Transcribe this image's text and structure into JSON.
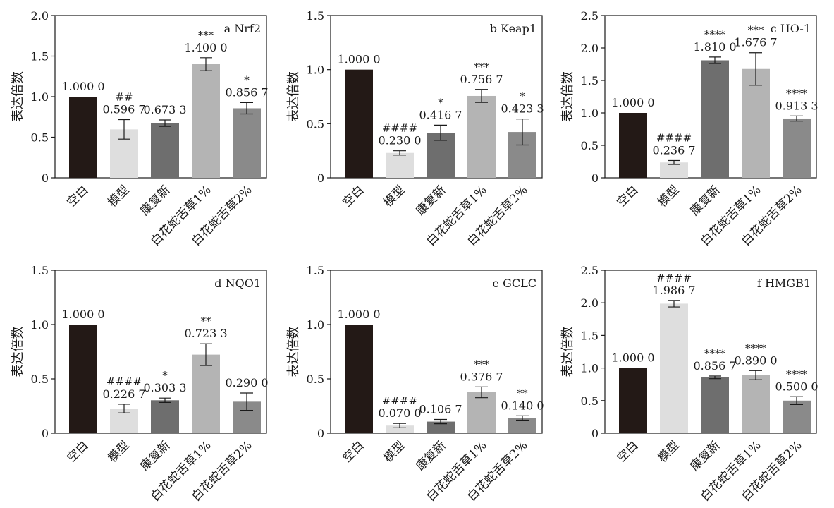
{
  "y_axis_label": "表达倍数",
  "categories": [
    "空白",
    "模型",
    "康复新",
    "白花蛇舌草1%",
    "白花蛇舌草2%"
  ],
  "bar_colors": [
    "#231916",
    "#dedede",
    "#6e6e6e",
    "#b4b4b4",
    "#8a8a8a"
  ],
  "chart_data": [
    {
      "type": "bar",
      "panel": "a",
      "title": "Nrf2",
      "ylabel": "表达倍数",
      "ylim": [
        0,
        2.0
      ],
      "yticks": [
        0,
        0.5,
        1.0,
        1.5,
        2.0
      ],
      "ytick_labels": [
        "0",
        "0.5",
        "1.0",
        "1.5",
        "2.0"
      ],
      "categories": [
        "空白",
        "模型",
        "康复新",
        "白花蛇舌草1%",
        "白花蛇舌草2%"
      ],
      "values": [
        1.0,
        0.5967,
        0.6733,
        1.4,
        0.8567
      ],
      "errors": [
        0,
        0.12,
        0.04,
        0.08,
        0.07
      ],
      "value_labels": [
        "1.000 0",
        "0.596 7",
        "0.673 3",
        "1.400 0",
        "0.856 7"
      ],
      "significance": [
        "",
        "##",
        "",
        "***",
        "*"
      ]
    },
    {
      "type": "bar",
      "panel": "b",
      "title": "Keap1",
      "ylabel": "表达倍数",
      "ylim": [
        0,
        1.5
      ],
      "yticks": [
        0,
        0.5,
        1.0,
        1.5
      ],
      "ytick_labels": [
        "0",
        "0.5",
        "1.0",
        "1.5"
      ],
      "categories": [
        "空白",
        "模型",
        "康复新",
        "白花蛇舌草1%",
        "白花蛇舌草2%"
      ],
      "values": [
        1.0,
        0.23,
        0.4167,
        0.7567,
        0.4233
      ],
      "errors": [
        0,
        0.02,
        0.07,
        0.06,
        0.12
      ],
      "value_labels": [
        "1.000 0",
        "0.230 0",
        "0.416 7",
        "0.756 7",
        "0.423 3"
      ],
      "significance": [
        "",
        "####",
        "*",
        "***",
        "*"
      ]
    },
    {
      "type": "bar",
      "panel": "c",
      "title": "HO-1",
      "ylabel": "表达倍数",
      "ylim": [
        0,
        2.5
      ],
      "yticks": [
        0,
        0.5,
        1.0,
        1.5,
        2.0,
        2.5
      ],
      "ytick_labels": [
        "0",
        "0.5",
        "1.0",
        "1.5",
        "2.0",
        "2.5"
      ],
      "categories": [
        "空白",
        "模型",
        "康复新",
        "白花蛇舌草1%",
        "白花蛇舌草2%"
      ],
      "values": [
        1.0,
        0.2367,
        1.81,
        1.6767,
        0.9133
      ],
      "errors": [
        0,
        0.03,
        0.05,
        0.25,
        0.04
      ],
      "value_labels": [
        "1.000 0",
        "0.236 7",
        "1.810 0",
        "1.676 7",
        "0.913 3"
      ],
      "significance": [
        "",
        "####",
        "****",
        "***",
        "****"
      ]
    },
    {
      "type": "bar",
      "panel": "d",
      "title": "NQO1",
      "ylabel": "表达倍数",
      "ylim": [
        0,
        1.5
      ],
      "yticks": [
        0,
        0.5,
        1.0,
        1.5
      ],
      "ytick_labels": [
        "0",
        "0.5",
        "1.0",
        "1.5"
      ],
      "categories": [
        "空白",
        "模型",
        "康复新",
        "白花蛇舌草1%",
        "白花蛇舌草2%"
      ],
      "values": [
        1.0,
        0.2267,
        0.3033,
        0.7233,
        0.29
      ],
      "errors": [
        0,
        0.04,
        0.02,
        0.1,
        0.08
      ],
      "value_labels": [
        "1.000 0",
        "0.226 7",
        "0.303 3",
        "0.723 3",
        "0.290 0"
      ],
      "significance": [
        "",
        "####",
        "*",
        "**",
        ""
      ]
    },
    {
      "type": "bar",
      "panel": "e",
      "title": "GCLC",
      "ylabel": "表达倍数",
      "ylim": [
        0,
        1.5
      ],
      "yticks": [
        0,
        0.5,
        1.0,
        1.5
      ],
      "ytick_labels": [
        "0",
        "0.5",
        "1.0",
        "1.5"
      ],
      "categories": [
        "空白",
        "模型",
        "康复新",
        "白花蛇舌草1%",
        "白花蛇舌草2%"
      ],
      "values": [
        1.0,
        0.07,
        0.1067,
        0.3767,
        0.14
      ],
      "errors": [
        0,
        0.02,
        0.02,
        0.05,
        0.02
      ],
      "value_labels": [
        "1.000 0",
        "0.070 0",
        "0.106 7",
        "0.376 7",
        "0.140 0"
      ],
      "significance": [
        "",
        "####",
        "",
        "***",
        "**"
      ]
    },
    {
      "type": "bar",
      "panel": "f",
      "title": "HMGB1",
      "ylabel": "表达倍数",
      "ylim": [
        0,
        2.5
      ],
      "yticks": [
        0,
        0.5,
        1.0,
        1.5,
        2.0,
        2.5
      ],
      "ytick_labels": [
        "0",
        "0.5",
        "1.0",
        "1.5",
        "2.0",
        "2.5"
      ],
      "categories": [
        "空白",
        "模型",
        "康复新",
        "白花蛇舌草1%",
        "白花蛇舌草2%"
      ],
      "values": [
        1.0,
        1.9867,
        0.8567,
        0.89,
        0.5
      ],
      "errors": [
        0,
        0.05,
        0.02,
        0.07,
        0.06
      ],
      "value_labels": [
        "1.000 0",
        "1.986 7",
        "0.856 7",
        "0.890 0",
        "0.500 0"
      ],
      "significance": [
        "",
        "####",
        "****",
        "****",
        "****"
      ]
    }
  ]
}
